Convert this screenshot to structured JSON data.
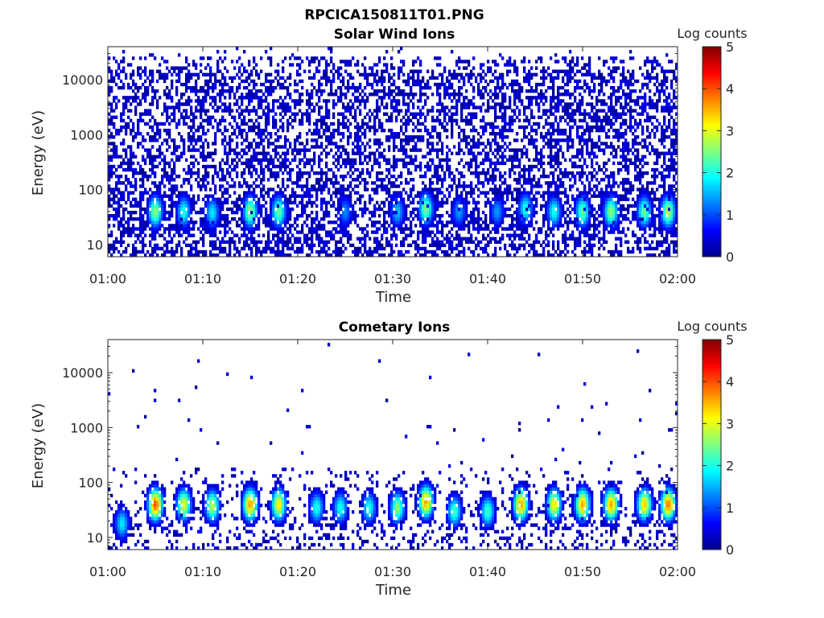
{
  "figure_title": "RPCICA150811T01.PNG",
  "chart_data": [
    {
      "type": "heatmap",
      "title": "Solar Wind Ions",
      "xlabel": "Time",
      "ylabel": "Energy (eV)",
      "x_ticks": [
        "01:00",
        "01:10",
        "01:20",
        "01:30",
        "01:40",
        "01:50",
        "02:00"
      ],
      "x_range_minutes": [
        0,
        60
      ],
      "y_scale": "log",
      "y_range": [
        6,
        40000
      ],
      "y_ticks": [
        10,
        100,
        1000,
        10000
      ],
      "y_tick_labels": [
        "10",
        "100",
        "1000",
        "10000"
      ],
      "colorbar": {
        "label": "Log counts",
        "range": [
          0,
          5
        ],
        "ticks": [
          "0",
          "1",
          "2",
          "3",
          "4",
          "5"
        ],
        "colormap": "jet"
      },
      "bursts": [
        {
          "t": 5,
          "energy": 40,
          "peak_log_counts": 2.6
        },
        {
          "t": 8,
          "energy": 40,
          "peak_log_counts": 2.0
        },
        {
          "t": 11,
          "energy": 38,
          "peak_log_counts": 1.8
        },
        {
          "t": 15,
          "energy": 40,
          "peak_log_counts": 2.6
        },
        {
          "t": 18,
          "energy": 40,
          "peak_log_counts": 2.4
        },
        {
          "t": 25,
          "energy": 40,
          "peak_log_counts": 1.3
        },
        {
          "t": 30.5,
          "energy": 40,
          "peak_log_counts": 1.6
        },
        {
          "t": 33.5,
          "energy": 45,
          "peak_log_counts": 2.5
        },
        {
          "t": 37,
          "energy": 40,
          "peak_log_counts": 1.4
        },
        {
          "t": 41,
          "energy": 40,
          "peak_log_counts": 1.4
        },
        {
          "t": 44,
          "energy": 45,
          "peak_log_counts": 2.0
        },
        {
          "t": 47,
          "energy": 40,
          "peak_log_counts": 2.0
        },
        {
          "t": 50,
          "energy": 40,
          "peak_log_counts": 2.4
        },
        {
          "t": 53,
          "energy": 40,
          "peak_log_counts": 2.6
        },
        {
          "t": 56.5,
          "energy": 40,
          "peak_log_counts": 2.4
        },
        {
          "t": 59,
          "energy": 40,
          "peak_log_counts": 2.8
        }
      ]
    },
    {
      "type": "heatmap",
      "title": "Cometary Ions",
      "xlabel": "Time",
      "ylabel": "Energy (eV)",
      "x_ticks": [
        "01:00",
        "01:10",
        "01:20",
        "01:30",
        "01:40",
        "01:50",
        "02:00"
      ],
      "x_range_minutes": [
        0,
        60
      ],
      "y_scale": "log",
      "y_range": [
        6,
        40000
      ],
      "y_ticks": [
        10,
        100,
        1000,
        10000
      ],
      "y_tick_labels": [
        "10",
        "100",
        "1000",
        "10000"
      ],
      "colorbar": {
        "label": "Log counts",
        "range": [
          0,
          5
        ],
        "ticks": [
          "0",
          "1",
          "2",
          "3",
          "4",
          "5"
        ],
        "colormap": "jet"
      },
      "bursts": [
        {
          "t": 1.5,
          "energy": 18,
          "peak_log_counts": 1.8
        },
        {
          "t": 5,
          "energy": 40,
          "peak_log_counts": 4.0
        },
        {
          "t": 8,
          "energy": 40,
          "peak_log_counts": 3.0
        },
        {
          "t": 11,
          "energy": 38,
          "peak_log_counts": 2.8
        },
        {
          "t": 15,
          "energy": 40,
          "peak_log_counts": 3.6
        },
        {
          "t": 18,
          "energy": 40,
          "peak_log_counts": 3.2
        },
        {
          "t": 22,
          "energy": 35,
          "peak_log_counts": 2.0
        },
        {
          "t": 24.5,
          "energy": 35,
          "peak_log_counts": 2.0
        },
        {
          "t": 27.5,
          "energy": 35,
          "peak_log_counts": 2.0
        },
        {
          "t": 30.5,
          "energy": 35,
          "peak_log_counts": 2.6
        },
        {
          "t": 33.5,
          "energy": 45,
          "peak_log_counts": 3.6
        },
        {
          "t": 36.5,
          "energy": 30,
          "peak_log_counts": 2.2
        },
        {
          "t": 40,
          "energy": 30,
          "peak_log_counts": 2.2
        },
        {
          "t": 43.5,
          "energy": 40,
          "peak_log_counts": 3.6
        },
        {
          "t": 47,
          "energy": 40,
          "peak_log_counts": 3.2
        },
        {
          "t": 50,
          "energy": 40,
          "peak_log_counts": 3.6
        },
        {
          "t": 53,
          "energy": 40,
          "peak_log_counts": 3.6
        },
        {
          "t": 56.5,
          "energy": 40,
          "peak_log_counts": 3.4
        },
        {
          "t": 59,
          "energy": 40,
          "peak_log_counts": 3.8
        }
      ]
    }
  ]
}
